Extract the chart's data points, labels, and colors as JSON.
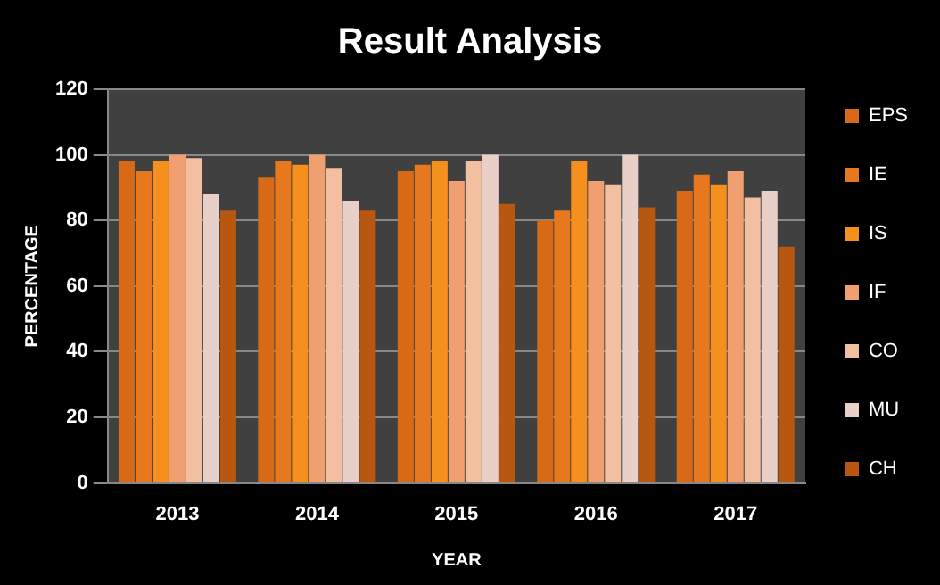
{
  "chart_data": {
    "type": "bar",
    "title": "Result Analysis",
    "xlabel": "YEAR",
    "ylabel": "PERCENTAGE",
    "categories": [
      "2013",
      "2014",
      "2015",
      "2016",
      "2017"
    ],
    "series": [
      {
        "name": "EPS",
        "color": "#d86a17",
        "values": [
          98,
          93,
          95,
          80,
          89
        ]
      },
      {
        "name": "IE",
        "color": "#e8781e",
        "values": [
          95,
          98,
          97,
          83,
          94
        ]
      },
      {
        "name": "IS",
        "color": "#f5901e",
        "values": [
          98,
          97,
          98,
          98,
          91
        ]
      },
      {
        "name": "IF",
        "color": "#f0a070",
        "values": [
          100,
          100,
          92,
          92,
          95
        ]
      },
      {
        "name": "CO",
        "color": "#f2c0a0",
        "values": [
          99,
          96,
          98,
          91,
          87
        ]
      },
      {
        "name": "MU",
        "color": "#e8d0c8",
        "values": [
          88,
          86,
          100,
          100,
          89
        ]
      },
      {
        "name": "CH",
        "color": "#b85810",
        "values": [
          83,
          83,
          85,
          84,
          72
        ]
      }
    ],
    "ylim": [
      0,
      120
    ],
    "yticks": [
      0,
      20,
      40,
      60,
      80,
      100,
      120
    ],
    "grid": "y",
    "legend": "right"
  }
}
